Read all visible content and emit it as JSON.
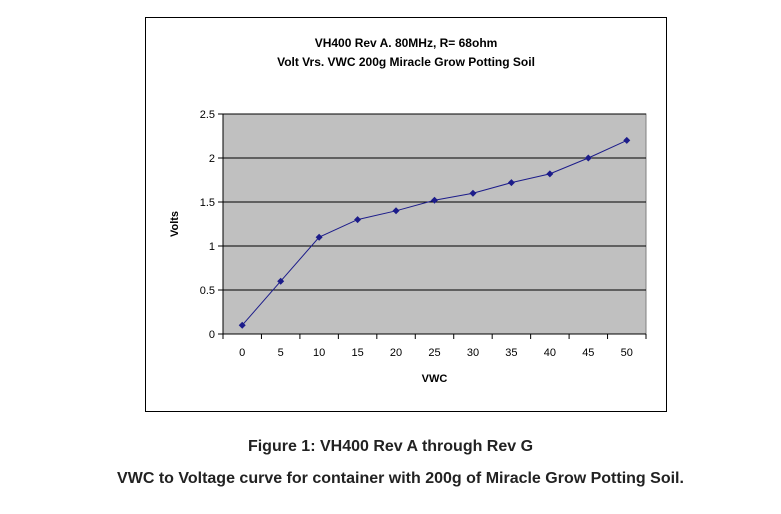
{
  "chart_data": {
    "type": "line",
    "title_lines": [
      "VH400 Rev A. 80MHz, R= 68ohm",
      "Volt Vrs. VWC 200g Miracle Grow Potting Soil"
    ],
    "xlabel": "VWC",
    "ylabel": "Volts",
    "xlim": [
      0,
      50
    ],
    "ylim": [
      0,
      2.5
    ],
    "xticks": [
      0,
      5,
      10,
      15,
      20,
      25,
      30,
      35,
      40,
      45,
      50
    ],
    "yticks": [
      0,
      0.5,
      1,
      1.5,
      2,
      2.5
    ],
    "ytick_labels": [
      "0",
      "0.5",
      "1",
      "1.5",
      "2",
      "2.5"
    ],
    "grid": "horizontal",
    "plot_background": "#c0c0c0",
    "series_color": "#1c1c8a",
    "marker": "diamond",
    "legend": "none",
    "series": [
      {
        "x": [
          0,
          5,
          10,
          15,
          20,
          25,
          30,
          35,
          40,
          45,
          50
        ],
        "y": [
          0.1,
          0.6,
          1.1,
          1.3,
          1.4,
          1.52,
          1.6,
          1.72,
          1.82,
          2.0,
          2.2
        ]
      }
    ]
  },
  "caption": {
    "title": "Figure 1: VH400 Rev A through Rev G",
    "subtitle": "VWC to Voltage curve for container with 200g of Miracle Grow Potting Soil."
  }
}
